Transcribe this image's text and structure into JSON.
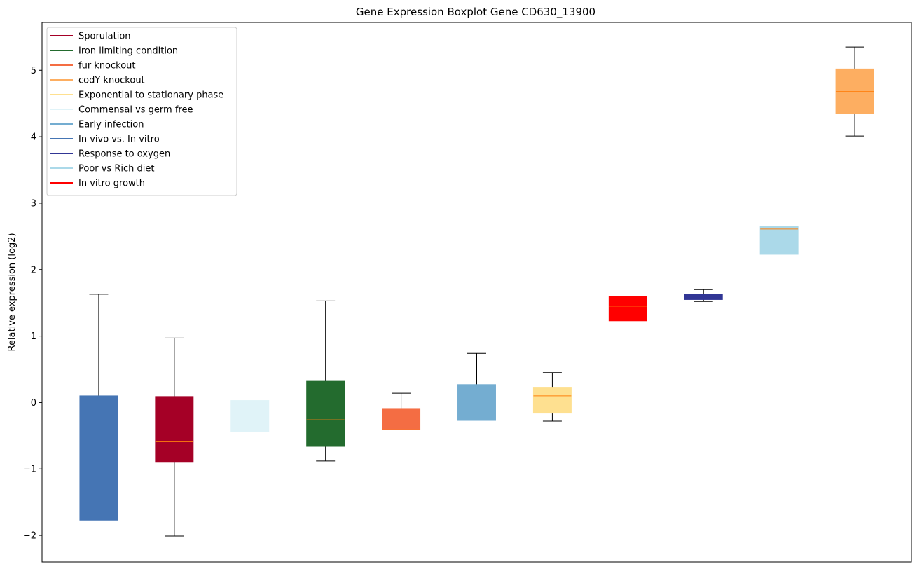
{
  "chart_data": {
    "type": "boxplot",
    "title": "Gene Expression Boxplot Gene CD630_13900",
    "xlabel": "",
    "ylabel": "Relative expression (log2)",
    "ylim": [
      -2.4,
      5.72
    ],
    "yticks": [
      -2,
      -1,
      0,
      1,
      2,
      3,
      4,
      5
    ],
    "ytick_labels": [
      "−2",
      "−1",
      "0",
      "1",
      "2",
      "3",
      "4",
      "5"
    ],
    "grid": false,
    "legend_position": "top-left",
    "legend": [
      {
        "label": "Sporulation",
        "color": "#a50026"
      },
      {
        "label": "Iron limiting condition",
        "color": "#236b2e"
      },
      {
        "label": "fur knockout",
        "color": "#f46d43"
      },
      {
        "label": "codY knockout",
        "color": "#fdae61"
      },
      {
        "label": "Exponential to stationary phase",
        "color": "#fee090"
      },
      {
        "label": "Commensal vs germ free",
        "color": "#e0f3f8"
      },
      {
        "label": "Early infection",
        "color": "#74add1"
      },
      {
        "label": "In vivo vs. In vitro",
        "color": "#4575b4"
      },
      {
        "label": "Response to oxygen",
        "color": "#313695"
      },
      {
        "label": "Poor vs Rich diet",
        "color": "#abd9e9"
      },
      {
        "label": "In vitro growth",
        "color": "#ff0000"
      }
    ],
    "median_color": "#ff7f0e",
    "boxes": [
      {
        "condition": "In vivo vs. In vitro",
        "color": "#4575b4",
        "whislo": -1.77,
        "q1": -1.77,
        "median": -0.76,
        "q3": 0.1,
        "whishi": 1.63
      },
      {
        "condition": "Sporulation",
        "color": "#a50026",
        "whislo": -2.01,
        "q1": -0.9,
        "median": -0.59,
        "q3": 0.09,
        "whishi": 0.97
      },
      {
        "condition": "Commensal vs germ free",
        "color": "#e0f3f8",
        "whislo": -0.44,
        "q1": -0.44,
        "median": -0.37,
        "q3": 0.03,
        "whishi": 0.03
      },
      {
        "condition": "Iron limiting condition",
        "color": "#236b2e",
        "whislo": -0.88,
        "q1": -0.66,
        "median": -0.26,
        "q3": 0.33,
        "whishi": 1.53
      },
      {
        "condition": "fur knockout",
        "color": "#f46d43",
        "whislo": -0.41,
        "q1": -0.41,
        "median": -0.41,
        "q3": -0.09,
        "whishi": 0.14
      },
      {
        "condition": "Early infection",
        "color": "#74add1",
        "whislo": -0.27,
        "q1": -0.27,
        "median": 0.01,
        "q3": 0.27,
        "whishi": 0.74
      },
      {
        "condition": "Exponential to stationary phase",
        "color": "#fee090",
        "whislo": -0.28,
        "q1": -0.16,
        "median": 0.1,
        "q3": 0.23,
        "whishi": 0.45
      },
      {
        "condition": "In vitro growth",
        "color": "#ff0000",
        "whislo": 1.23,
        "q1": 1.23,
        "median": 1.45,
        "q3": 1.6,
        "whishi": 1.6
      },
      {
        "condition": "Response to oxygen",
        "color": "#313695",
        "whislo": 1.52,
        "q1": 1.55,
        "median": 1.56,
        "q3": 1.63,
        "whishi": 1.7
      },
      {
        "condition": "Poor vs Rich diet",
        "color": "#abd9e9",
        "whislo": 2.23,
        "q1": 2.23,
        "median": 2.61,
        "q3": 2.65,
        "whishi": 2.65
      },
      {
        "condition": "codY knockout",
        "color": "#fdae61",
        "whislo": 4.01,
        "q1": 4.35,
        "median": 4.68,
        "q3": 5.02,
        "whishi": 5.35
      }
    ]
  }
}
